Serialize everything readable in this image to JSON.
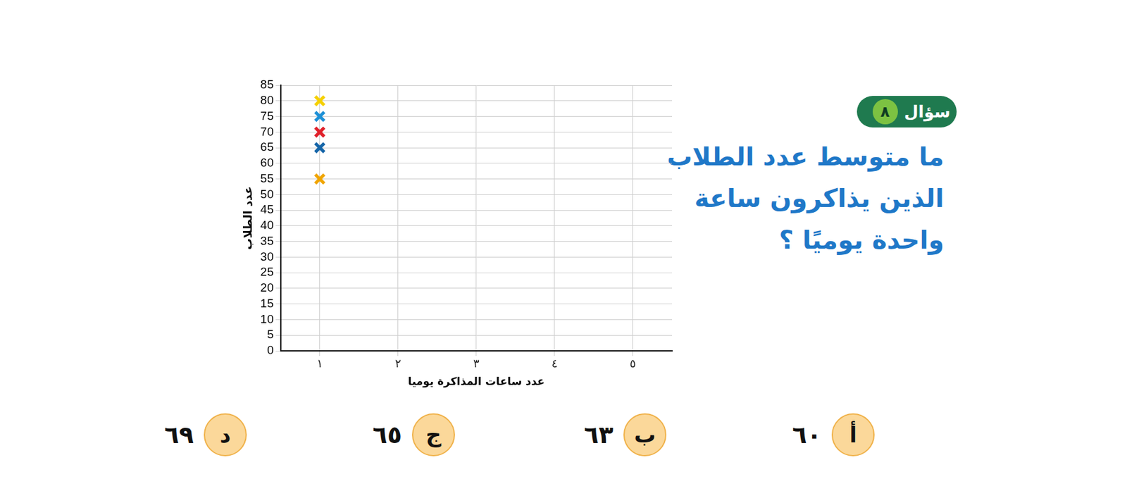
{
  "chart_data": {
    "type": "scatter",
    "x_label": "عدد ساعات المذاكرة يوميا",
    "y_label": "عدد الطلاب",
    "x": [
      1,
      1,
      1,
      1,
      1
    ],
    "values": [
      80,
      75,
      70,
      65,
      55
    ],
    "colors": [
      "#f5d000",
      "#1e90d6",
      "#e0202a",
      "#1565a8",
      "#f0a500"
    ],
    "marker": "x",
    "xlim": [
      0.5,
      5.5
    ],
    "xticks": [
      {
        "value": 1,
        "label": "١"
      },
      {
        "value": 2,
        "label": "٢"
      },
      {
        "value": 3,
        "label": "٣"
      },
      {
        "value": 4,
        "label": "٤"
      },
      {
        "value": 5,
        "label": "٥"
      }
    ],
    "ylim": [
      0,
      85
    ],
    "yticks": [
      0,
      5,
      10,
      15,
      20,
      25,
      30,
      35,
      40,
      45,
      50,
      55,
      60,
      65,
      70,
      75,
      80,
      85
    ],
    "grid": true,
    "legend": "none"
  },
  "question": {
    "badge": "سؤال",
    "number": "٨",
    "lines": [
      "ما متوسط عدد الطلاب",
      "الذين  يذاكرون ساعة",
      "واحدة يوميًا ؟"
    ]
  },
  "options": [
    {
      "letter": "أ",
      "text": "٦٠"
    },
    {
      "letter": "ب",
      "text": "٦٣"
    },
    {
      "letter": "ج",
      "text": "٦٥"
    },
    {
      "letter": "د",
      "text": "٦٩"
    }
  ]
}
